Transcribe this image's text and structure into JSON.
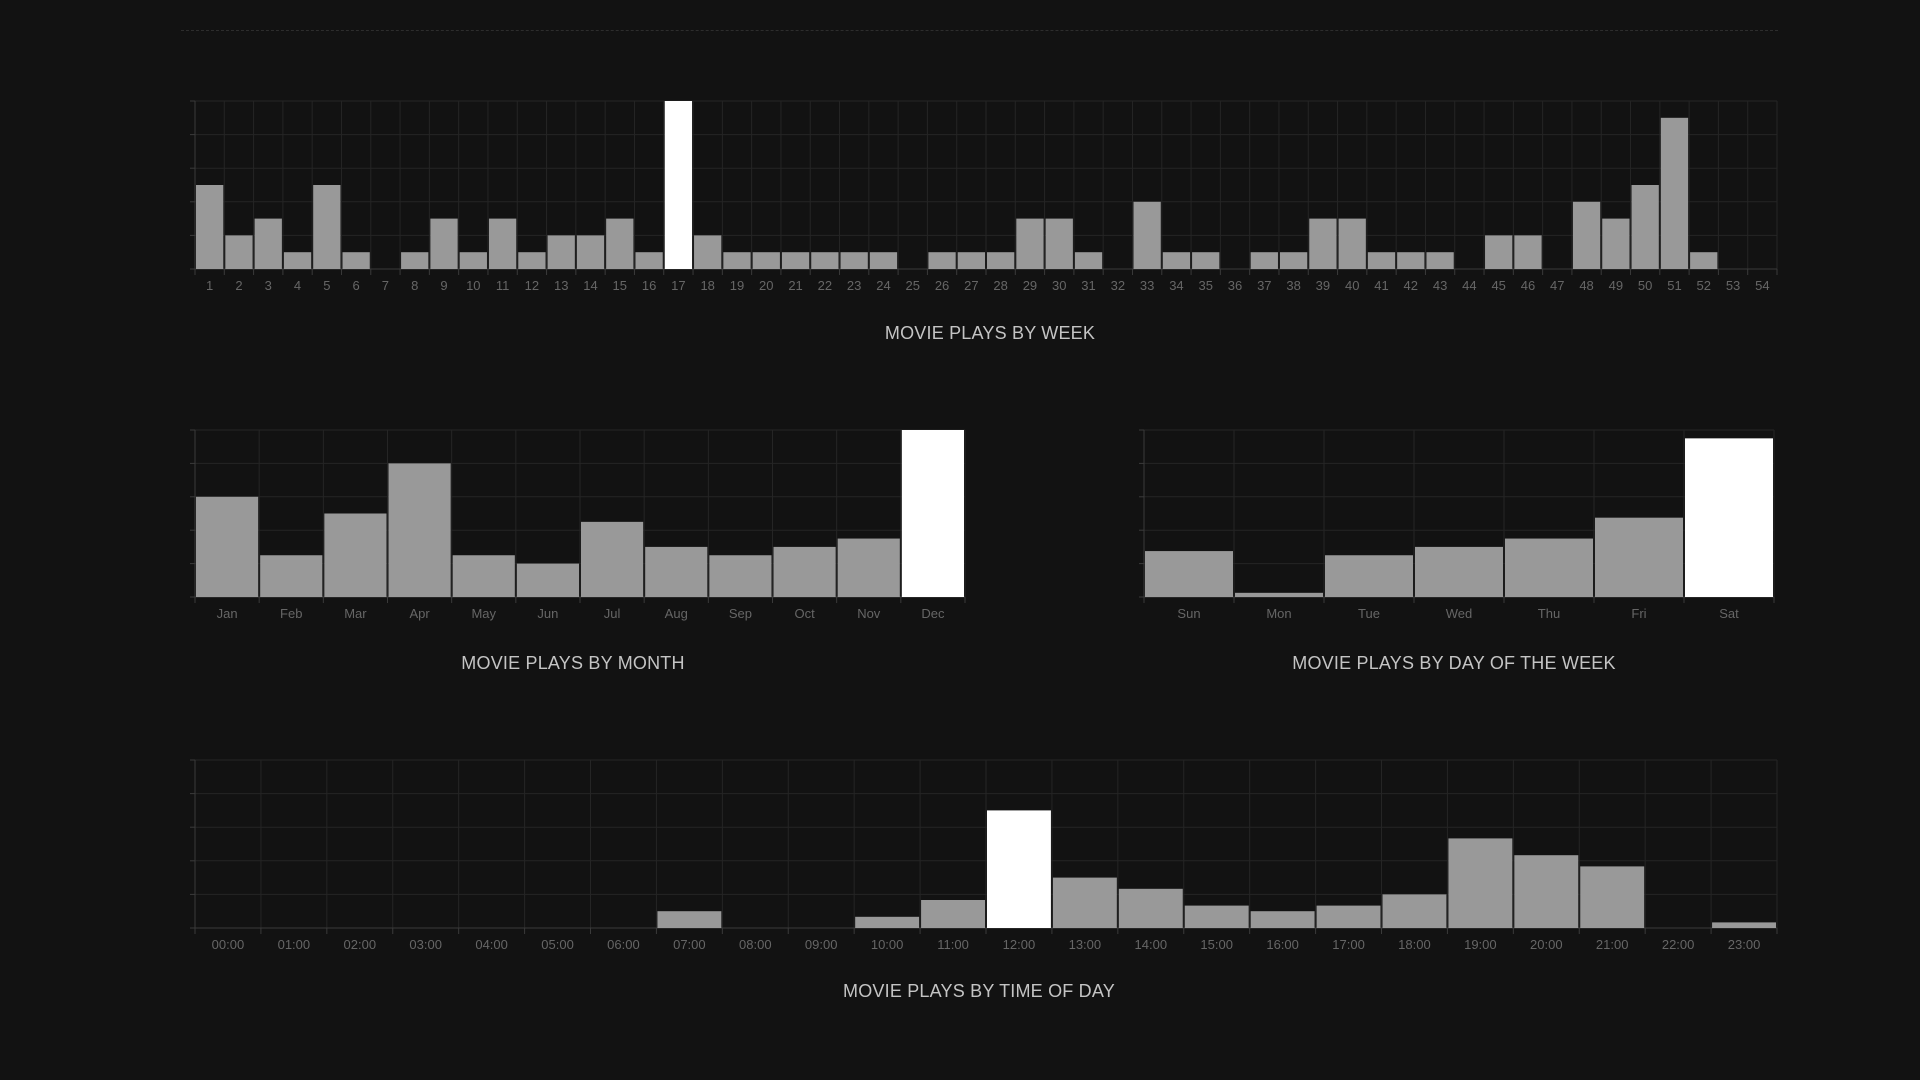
{
  "colors": {
    "background": "#121212",
    "bar": "#999999",
    "bar_highlight": "#ffffff",
    "grid": "#252525",
    "axis": "#3a3a3a",
    "tick_text": "#666666",
    "title_text": "#c4c4c4"
  },
  "chart_data": [
    {
      "id": "week",
      "type": "bar",
      "title": "MOVIE PLAYS BY WEEK",
      "categories": [
        "1",
        "2",
        "3",
        "4",
        "5",
        "6",
        "7",
        "8",
        "9",
        "10",
        "11",
        "12",
        "13",
        "14",
        "15",
        "16",
        "17",
        "18",
        "19",
        "20",
        "21",
        "22",
        "23",
        "24",
        "25",
        "26",
        "27",
        "28",
        "29",
        "30",
        "31",
        "32",
        "33",
        "34",
        "35",
        "36",
        "37",
        "38",
        "39",
        "40",
        "41",
        "42",
        "43",
        "44",
        "45",
        "46",
        "47",
        "48",
        "49",
        "50",
        "51",
        "52",
        "53",
        "54"
      ],
      "values": [
        5,
        2,
        3,
        1,
        5,
        1,
        0,
        1,
        3,
        1,
        3,
        1,
        2,
        2,
        3,
        1,
        10,
        2,
        1,
        1,
        1,
        1,
        1,
        1,
        0,
        1,
        1,
        1,
        3,
        3,
        1,
        0,
        4,
        1,
        1,
        0,
        1,
        1,
        3,
        3,
        1,
        1,
        1,
        0,
        2,
        2,
        0,
        4,
        3,
        5,
        9,
        1,
        0,
        0
      ],
      "highlight_index": 16,
      "ylim": [
        0,
        10
      ]
    },
    {
      "id": "month",
      "type": "bar",
      "title": "MOVIE PLAYS BY MONTH",
      "categories": [
        "Jan",
        "Feb",
        "Mar",
        "Apr",
        "May",
        "Jun",
        "Jul",
        "Aug",
        "Sep",
        "Oct",
        "Nov",
        "Dec"
      ],
      "values": [
        12,
        5,
        10,
        16,
        5,
        4,
        9,
        6,
        5,
        6,
        7,
        20
      ],
      "highlight_index": 11,
      "ylim": [
        0,
        20
      ]
    },
    {
      "id": "weekday",
      "type": "bar",
      "title": "MOVIE PLAYS BY DAY OF THE WEEK",
      "categories": [
        "Sun",
        "Mon",
        "Tue",
        "Wed",
        "Thu",
        "Fri",
        "Sat"
      ],
      "values": [
        11,
        1,
        10,
        12,
        14,
        19,
        38
      ],
      "highlight_index": 6,
      "ylim": [
        0,
        40
      ]
    },
    {
      "id": "hour",
      "type": "bar",
      "title": "MOVIE PLAYS BY TIME OF DAY",
      "categories": [
        "00:00",
        "01:00",
        "02:00",
        "03:00",
        "04:00",
        "05:00",
        "06:00",
        "07:00",
        "08:00",
        "09:00",
        "10:00",
        "11:00",
        "12:00",
        "13:00",
        "14:00",
        "15:00",
        "16:00",
        "17:00",
        "18:00",
        "19:00",
        "20:00",
        "21:00",
        "22:00",
        "23:00"
      ],
      "values": [
        0,
        0,
        0,
        0,
        0,
        0,
        0,
        3,
        0,
        0,
        2,
        5,
        21,
        9,
        7,
        4,
        3,
        4,
        6,
        16,
        13,
        11,
        0,
        1
      ],
      "highlight_index": 12,
      "ylim": [
        0,
        30
      ]
    }
  ]
}
